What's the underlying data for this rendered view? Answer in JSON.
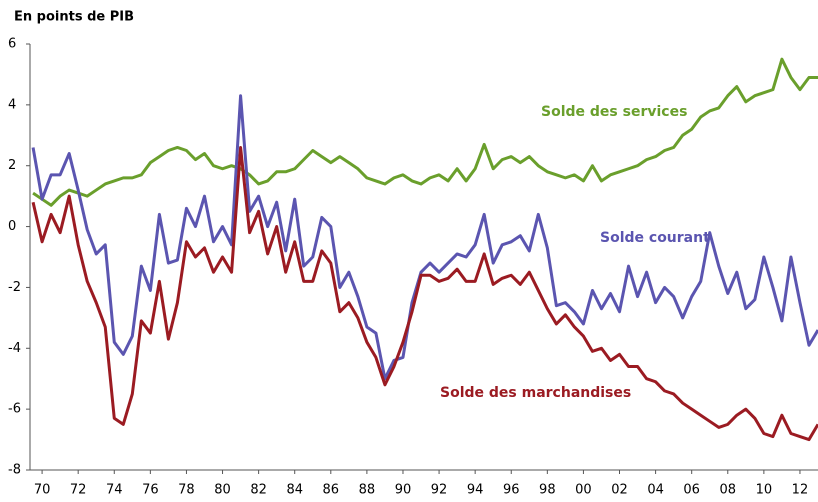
{
  "chart_data": {
    "type": "line",
    "y_label": "En points de PIB",
    "x": [
      1969.5,
      1970,
      1970.5,
      1971,
      1971.5,
      1972,
      1972.5,
      1973,
      1973.5,
      1974,
      1974.5,
      1975,
      1975.5,
      1976,
      1976.5,
      1977,
      1977.5,
      1978,
      1978.5,
      1979,
      1979.5,
      1980,
      1980.5,
      1981,
      1981.5,
      1982,
      1982.5,
      1983,
      1983.5,
      1984,
      1984.5,
      1985,
      1985.5,
      1986,
      1986.5,
      1987,
      1987.5,
      1988,
      1988.5,
      1989,
      1989.5,
      1990,
      1990.5,
      1991,
      1991.5,
      1992,
      1992.5,
      1993,
      1993.5,
      1994,
      1994.5,
      1995,
      1995.5,
      1996,
      1996.5,
      1997,
      1997.5,
      1998,
      1998.5,
      1999,
      1999.5,
      2000,
      2000.5,
      2001,
      2001.5,
      2002,
      2002.5,
      2003,
      2003.5,
      2004,
      2004.5,
      2005,
      2005.5,
      2006,
      2006.5,
      2007,
      2007.5,
      2008,
      2008.5,
      2009,
      2009.5,
      2010,
      2010.5,
      2011,
      2011.5,
      2012,
      2012.5,
      2013
    ],
    "series": [
      {
        "name": "Solde des services",
        "color": "#6a9f2c",
        "values": [
          1.1,
          0.9,
          0.7,
          1.0,
          1.2,
          1.1,
          1.0,
          1.2,
          1.4,
          1.5,
          1.6,
          1.6,
          1.7,
          2.1,
          2.3,
          2.5,
          2.6,
          2.5,
          2.2,
          2.4,
          2.0,
          1.9,
          2.0,
          1.9,
          1.7,
          1.4,
          1.5,
          1.8,
          1.8,
          1.9,
          2.2,
          2.5,
          2.3,
          2.1,
          2.3,
          2.1,
          1.9,
          1.6,
          1.5,
          1.4,
          1.6,
          1.7,
          1.5,
          1.4,
          1.6,
          1.7,
          1.5,
          1.9,
          1.5,
          1.9,
          2.7,
          1.9,
          2.2,
          2.3,
          2.1,
          2.3,
          2.0,
          1.8,
          1.7,
          1.6,
          1.7,
          1.5,
          2.0,
          1.5,
          1.7,
          1.8,
          1.9,
          2.0,
          2.2,
          2.3,
          2.5,
          2.6,
          3.0,
          3.2,
          3.6,
          3.8,
          3.9,
          4.3,
          4.6,
          4.1,
          4.3,
          4.4,
          4.5,
          5.5,
          4.9,
          4.5,
          4.9,
          4.9
        ]
      },
      {
        "name": "Solde courant",
        "color": "#5b55b0",
        "values": [
          2.6,
          0.9,
          1.7,
          1.7,
          2.4,
          1.2,
          -0.1,
          -0.9,
          -0.6,
          -3.8,
          -4.2,
          -3.6,
          -1.3,
          -2.1,
          0.4,
          -1.2,
          -1.1,
          0.6,
          0.0,
          1.0,
          -0.5,
          0.0,
          -0.6,
          4.3,
          0.5,
          1.0,
          0.0,
          0.8,
          -0.8,
          0.9,
          -1.3,
          -1.0,
          0.3,
          0.0,
          -2.0,
          -1.5,
          -2.3,
          -3.3,
          -3.5,
          -5.0,
          -4.4,
          -4.3,
          -2.5,
          -1.5,
          -1.2,
          -1.5,
          -1.2,
          -0.9,
          -1.0,
          -0.6,
          0.4,
          -1.2,
          -0.6,
          -0.5,
          -0.3,
          -0.8,
          0.4,
          -0.7,
          -2.6,
          -2.5,
          -2.8,
          -3.2,
          -2.1,
          -2.7,
          -2.2,
          -2.8,
          -1.3,
          -2.3,
          -1.5,
          -2.5,
          -2.0,
          -2.3,
          -3.0,
          -2.3,
          -1.8,
          -0.2,
          -1.3,
          -2.2,
          -1.5,
          -2.7,
          -2.4,
          -1.0,
          -2.0,
          -3.1,
          -1.0,
          -2.5,
          -3.9,
          -3.4
        ]
      },
      {
        "name": "Solde des marchandises",
        "color": "#9b1b22",
        "values": [
          0.8,
          -0.5,
          0.4,
          -0.2,
          1.0,
          -0.6,
          -1.8,
          -2.5,
          -3.3,
          -6.3,
          -6.5,
          -5.5,
          -3.1,
          -3.5,
          -1.8,
          -3.7,
          -2.5,
          -0.5,
          -1.0,
          -0.7,
          -1.5,
          -1.0,
          -1.5,
          2.6,
          -0.2,
          0.5,
          -0.9,
          0.0,
          -1.5,
          -0.5,
          -1.8,
          -1.8,
          -0.8,
          -1.2,
          -2.8,
          -2.5,
          -3.0,
          -3.8,
          -4.3,
          -5.2,
          -4.6,
          -3.8,
          -2.8,
          -1.6,
          -1.6,
          -1.8,
          -1.7,
          -1.4,
          -1.8,
          -1.8,
          -0.9,
          -1.9,
          -1.7,
          -1.6,
          -1.9,
          -1.5,
          -2.1,
          -2.7,
          -3.2,
          -2.9,
          -3.3,
          -3.6,
          -4.1,
          -4.0,
          -4.4,
          -4.2,
          -4.6,
          -4.6,
          -5.0,
          -5.1,
          -5.4,
          -5.5,
          -5.8,
          -6.0,
          -6.2,
          -6.4,
          -6.6,
          -6.5,
          -6.2,
          -6.0,
          -6.3,
          -6.8,
          -6.9,
          -6.2,
          -6.8,
          -6.9,
          -7.0,
          -6.5
        ]
      }
    ],
    "xlim": [
      1969.33,
      2013.0
    ],
    "xticks": [
      {
        "value": 1970,
        "label": "70"
      },
      {
        "value": 1972,
        "label": "72"
      },
      {
        "value": 1974,
        "label": "74"
      },
      {
        "value": 1976,
        "label": "76"
      },
      {
        "value": 1978,
        "label": "78"
      },
      {
        "value": 1980,
        "label": "80"
      },
      {
        "value": 1982,
        "label": "82"
      },
      {
        "value": 1984,
        "label": "84"
      },
      {
        "value": 1986,
        "label": "86"
      },
      {
        "value": 1988,
        "label": "88"
      },
      {
        "value": 1990,
        "label": "90"
      },
      {
        "value": 1992,
        "label": "92"
      },
      {
        "value": 1994,
        "label": "94"
      },
      {
        "value": 1996,
        "label": "96"
      },
      {
        "value": 1998,
        "label": "98"
      },
      {
        "value": 2000,
        "label": "00"
      },
      {
        "value": 2002,
        "label": "02"
      },
      {
        "value": 2004,
        "label": "04"
      },
      {
        "value": 2006,
        "label": "06"
      },
      {
        "value": 2008,
        "label": "08"
      },
      {
        "value": 2010,
        "label": "10"
      },
      {
        "value": 2012,
        "label": "12"
      }
    ],
    "ylim": [
      -8,
      6
    ],
    "yticks": [
      6,
      4,
      2,
      0,
      -2,
      -4,
      -6,
      -8
    ],
    "grid": false
  }
}
